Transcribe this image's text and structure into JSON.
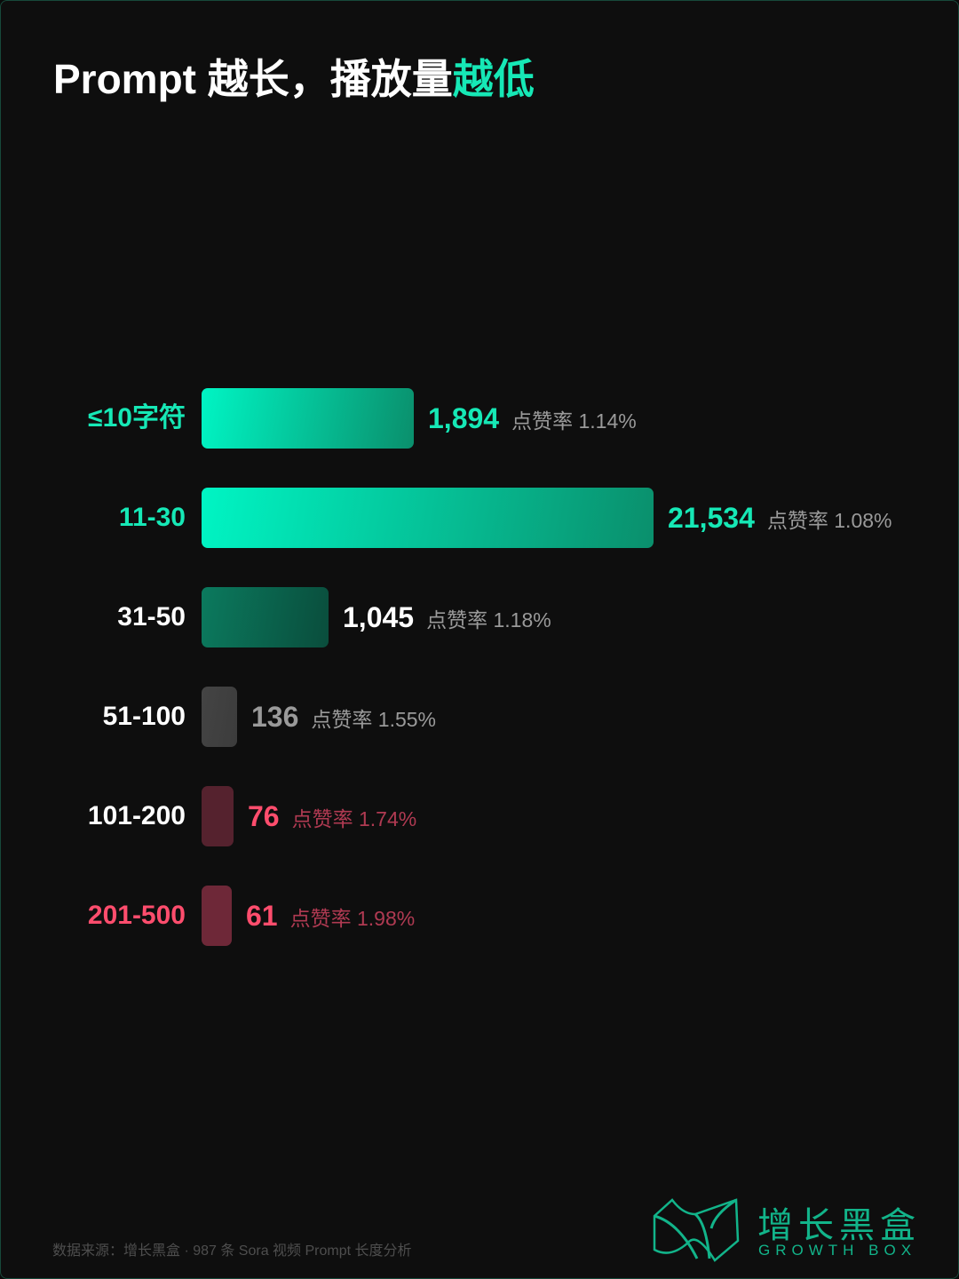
{
  "title": {
    "part1": "Prompt 越长，播放量",
    "part2": "越低"
  },
  "colors": {
    "accent": "#16e8b6",
    "warn": "#ff4d6d",
    "background": "#0e0e0e"
  },
  "chart_data": {
    "type": "bar",
    "orientation": "horizontal",
    "title": "Prompt 越长，播放量越低",
    "categories": [
      "≤10字符",
      "11-30",
      "31-50",
      "51-100",
      "101-200",
      "201-500"
    ],
    "values": [
      1894,
      21534,
      1045,
      136,
      76,
      61
    ],
    "value_labels": [
      "1,894",
      "21,534",
      "1,045",
      "136",
      "76",
      "61"
    ],
    "rate_prefix": "点赞率",
    "like_rates": [
      "1.14%",
      "1.08%",
      "1.18%",
      "1.55%",
      "1.74%",
      "1.98%"
    ],
    "bar_colors": [
      [
        "#00f5c4",
        "#0a8f6c"
      ],
      [
        "#00f5c4",
        "#0a8f6c"
      ],
      [
        "#0b7a5e",
        "#0a4d3c"
      ],
      [
        "#444444",
        "#3c3c3c"
      ],
      [
        "#55222e",
        "#55222e"
      ],
      [
        "#6e2838",
        "#6e2838"
      ]
    ],
    "category_colors": [
      "#16e8b6",
      "#16e8b6",
      "#ffffff",
      "#ffffff",
      "#ffffff",
      "#ff4d6d"
    ],
    "value_colors": [
      "#16e8b6",
      "#16e8b6",
      "#ffffff",
      "#9a9a9a",
      "#ff4d6d",
      "#ff4d6d"
    ],
    "rate_colors": [
      "#9a9a9a",
      "#9a9a9a",
      "#9a9a9a",
      "#9a9a9a",
      "#b03a52",
      "#b03a52"
    ],
    "grid": false,
    "legend": "none"
  },
  "footer": {
    "source": "数据来源：增长黑盒 · 987 条 Sora 视频 Prompt 长度分析"
  },
  "brand": {
    "name_cn": "增长黑盒",
    "name_en": "GROWTH BOX"
  }
}
